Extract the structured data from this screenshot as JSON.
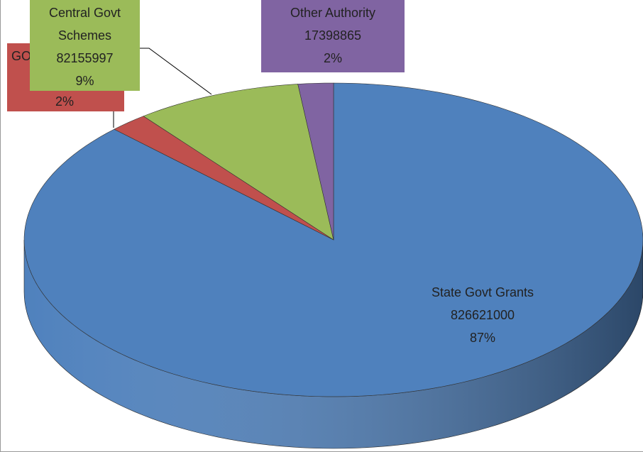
{
  "chart_data": {
    "type": "pie3d",
    "categories": [
      "State Govt Grants",
      "GO",
      "Central Govt Schemes",
      "Other Authority"
    ],
    "values": [
      826621000,
      19000000,
      82155997,
      17398865
    ],
    "percent_labels": [
      "87%",
      "2%",
      "9%",
      "2%"
    ],
    "colors": [
      "#4f81bd",
      "#c0504d",
      "#9bbb59",
      "#8064a2"
    ]
  }
}
